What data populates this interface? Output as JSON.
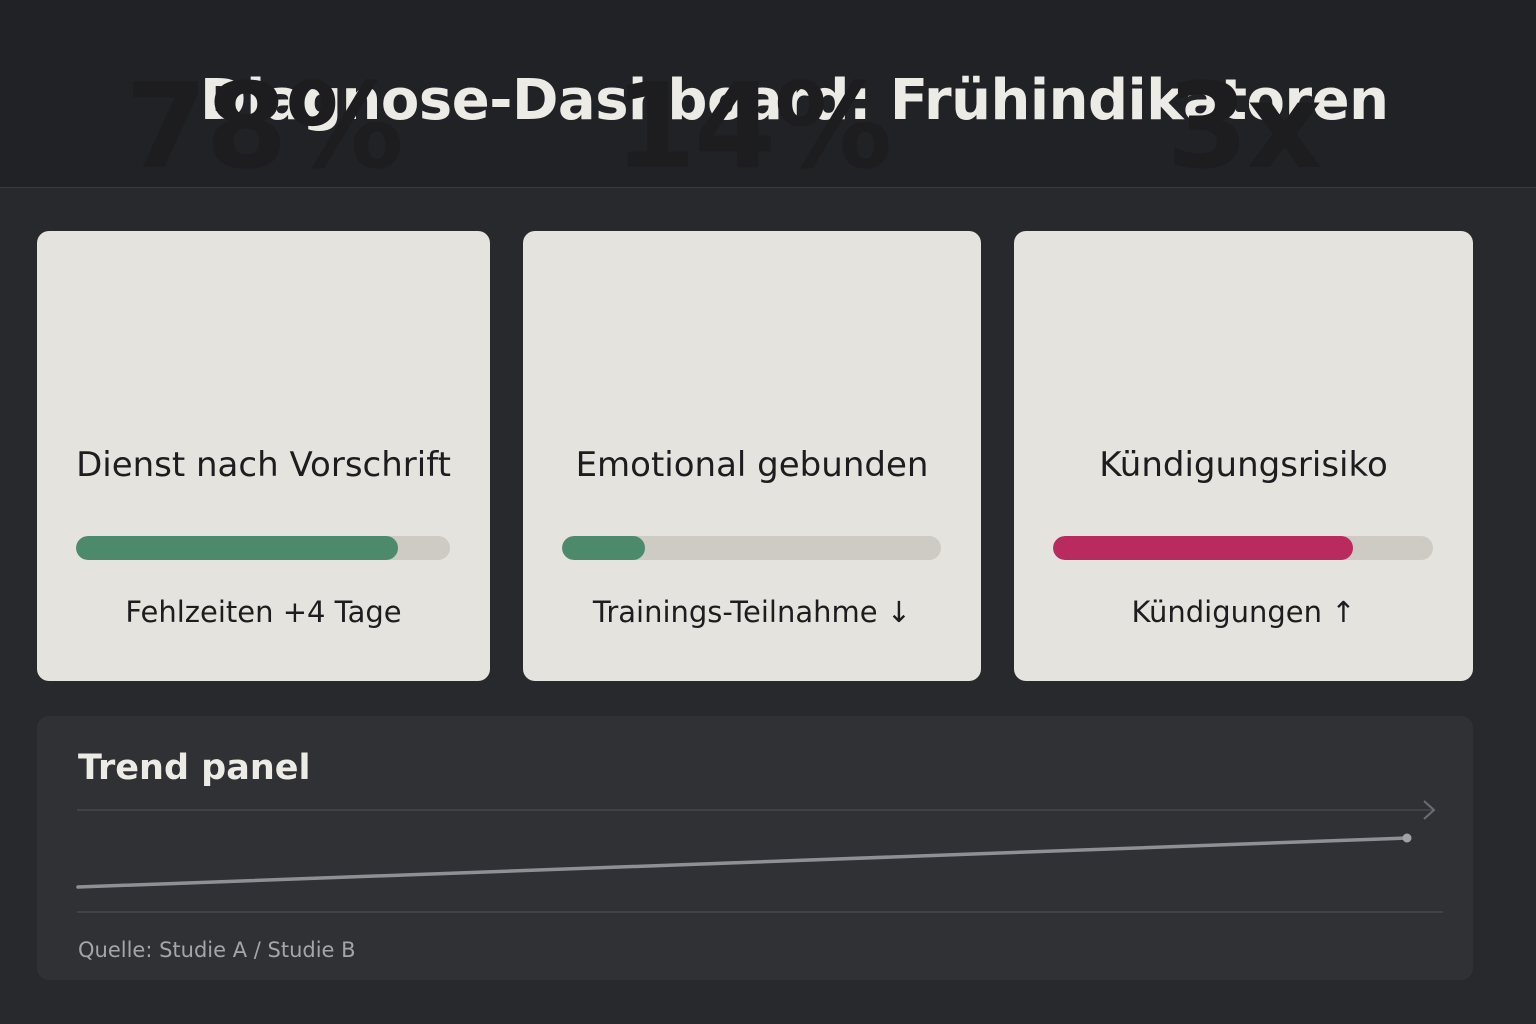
{
  "header": {
    "title": "Diagnose-Dashboard: Frühindikatoren"
  },
  "cards": [
    {
      "value": "78%",
      "label": "Dienst nach Vorschrift",
      "progress": 86,
      "color": "#4d8a6b",
      "note": "Fehlzeiten +4 Tage"
    },
    {
      "value": "14%",
      "label": "Emotional gebunden",
      "progress": 22,
      "color": "#4d8a6b",
      "note": "Trainings-Teilnahme ↓"
    },
    {
      "value": "3x",
      "label": "Kündigungsrisiko",
      "progress": 79,
      "color": "#b92b5f",
      "note": "Kündigungen ↑"
    }
  ],
  "trend": {
    "title": "Trend panel",
    "source": "Quelle: Studie A /  Studie B"
  }
}
